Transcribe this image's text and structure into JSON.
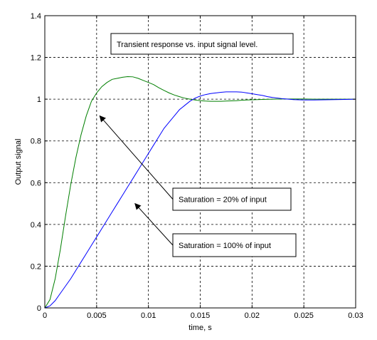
{
  "chart_data": {
    "type": "line",
    "title_box": "Transient response vs. input signal level.",
    "xlabel": "time, s",
    "ylabel": "Output signal",
    "xlim": [
      0,
      0.03
    ],
    "ylim": [
      0,
      1.4
    ],
    "x_ticks": [
      0,
      0.005,
      0.01,
      0.015,
      0.02,
      0.025,
      0.03
    ],
    "x_tick_labels": [
      "0",
      "0.005",
      "0.01",
      "0.015",
      "0.02",
      "0.025",
      "0.03"
    ],
    "y_ticks": [
      0,
      0.2,
      0.4,
      0.6,
      0.8,
      1,
      1.2,
      1.4
    ],
    "y_tick_labels": [
      "0",
      "0.2",
      "0.4",
      "0.6",
      "0.8",
      "1",
      "1.2",
      "1.4"
    ],
    "grid": true,
    "series": [
      {
        "color": "#007f00",
        "x": [
          0,
          0.0005,
          0.001,
          0.0015,
          0.002,
          0.0025,
          0.003,
          0.0035,
          0.004,
          0.0045,
          0.005,
          0.0055,
          0.006,
          0.0065,
          0.007,
          0.0075,
          0.008,
          0.0085,
          0.009,
          0.0095,
          0.01,
          0.0105,
          0.011,
          0.0115,
          0.012,
          0.0125,
          0.013,
          0.0135,
          0.014,
          0.0145,
          0.015,
          0.0155,
          0.016,
          0.0165,
          0.017,
          0.0175,
          0.018,
          0.0185,
          0.019,
          0.0195,
          0.02,
          0.021,
          0.022,
          0.023,
          0.024,
          0.025,
          0.026,
          0.027,
          0.028,
          0.029,
          0.03
        ],
        "y": [
          0,
          0.04,
          0.14,
          0.28,
          0.44,
          0.59,
          0.72,
          0.83,
          0.92,
          0.99,
          1.03,
          1.06,
          1.08,
          1.095,
          1.1,
          1.105,
          1.108,
          1.107,
          1.1,
          1.09,
          1.08,
          1.07,
          1.055,
          1.042,
          1.03,
          1.02,
          1.012,
          1.005,
          1,
          0.996,
          0.993,
          0.991,
          0.99,
          0.99,
          0.99,
          0.991,
          0.992,
          0.993,
          0.995,
          0.996,
          0.997,
          0.999,
          1,
          1.001,
          1.001,
          1.001,
          1,
          1,
          1,
          1,
          1
        ]
      },
      {
        "color": "#0000ff",
        "x": [
          0,
          0.0005,
          0.001,
          0.0015,
          0.002,
          0.0025,
          0.003,
          0.0035,
          0.004,
          0.0045,
          0.005,
          0.0055,
          0.006,
          0.0065,
          0.007,
          0.0075,
          0.008,
          0.0085,
          0.009,
          0.0095,
          0.01,
          0.0105,
          0.011,
          0.0115,
          0.012,
          0.0125,
          0.013,
          0.0135,
          0.014,
          0.0145,
          0.015,
          0.0155,
          0.016,
          0.0165,
          0.017,
          0.0175,
          0.018,
          0.0185,
          0.019,
          0.0195,
          0.02,
          0.0205,
          0.021,
          0.0215,
          0.022,
          0.023,
          0.024,
          0.025,
          0.026,
          0.027,
          0.028,
          0.029,
          0.03
        ],
        "y": [
          0,
          0.01,
          0.035,
          0.07,
          0.105,
          0.14,
          0.18,
          0.22,
          0.26,
          0.3,
          0.34,
          0.38,
          0.42,
          0.46,
          0.5,
          0.54,
          0.58,
          0.62,
          0.66,
          0.7,
          0.74,
          0.78,
          0.82,
          0.86,
          0.89,
          0.92,
          0.95,
          0.97,
          0.99,
          1.005,
          1.015,
          1.022,
          1.027,
          1.03,
          1.033,
          1.035,
          1.035,
          1.035,
          1.034,
          1.03,
          1.026,
          1.022,
          1.018,
          1.012,
          1.008,
          1.002,
          0.998,
          0.996,
          0.996,
          0.997,
          0.998,
          0.999,
          1
        ]
      }
    ],
    "annotations": [
      {
        "text": "Saturation = 20% of input",
        "target": [
          0.0053,
          0.92
        ]
      },
      {
        "text": "Saturation = 100% of input",
        "target": [
          0.0087,
          0.5
        ]
      }
    ]
  }
}
